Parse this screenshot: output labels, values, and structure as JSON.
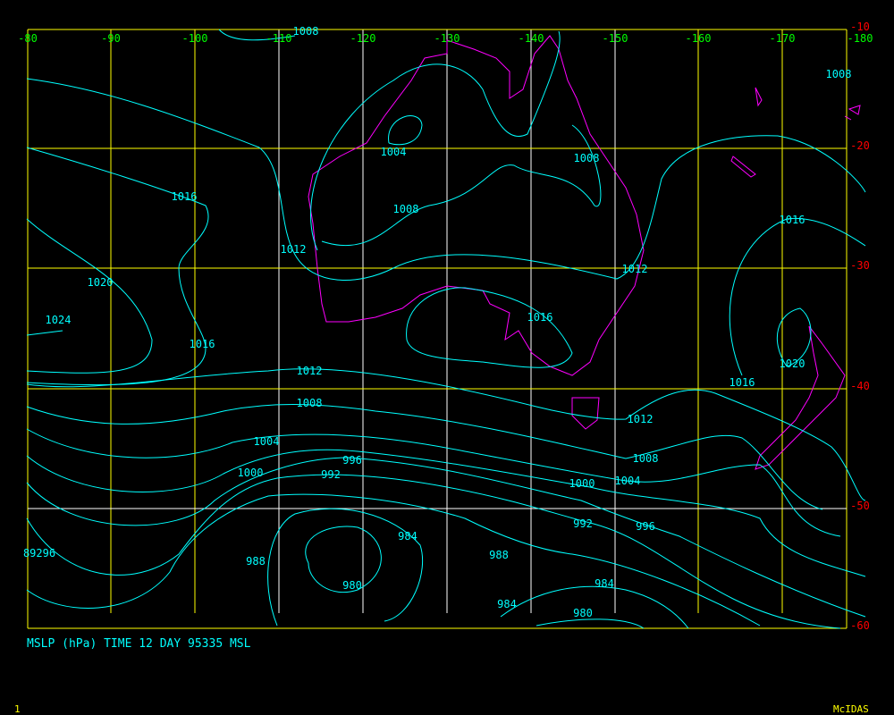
{
  "colors": {
    "background": "#000000",
    "grid_major": "#ffff00",
    "grid_minor": "#ffffff",
    "contour": "#00ffff",
    "coast": "#ff00ff",
    "lon_label": "#00ff00",
    "lat_label": "#ff0000",
    "caption": "#00ffff",
    "brand": "#ffff00"
  },
  "lon_labels": [
    "-80",
    "-90",
    "-100",
    "-110",
    "-120",
    "-130",
    "-140",
    "-150",
    "-160",
    "-170",
    "-180"
  ],
  "lat_labels": [
    "-10",
    "-20",
    "-30",
    "-40",
    "-50",
    "-60"
  ],
  "contour_labels": [
    "1008",
    "1008",
    "1004",
    "1008",
    "1016",
    "1008",
    "1016",
    "1012",
    "1012",
    "1020",
    "1016",
    "1024",
    "1016",
    "1020",
    "1012",
    "1016",
    "1008",
    "1012",
    "1004",
    "1008",
    "996",
    "1000",
    "992",
    "1004",
    "1000",
    "992",
    "996",
    "984",
    "89296",
    "988",
    "988",
    "980",
    "984",
    "984",
    "980"
  ],
  "caption": "MSLP (hPa) TIME 12 DAY 95335 MSL",
  "frame_number": "1",
  "brand": "McIDAS"
}
